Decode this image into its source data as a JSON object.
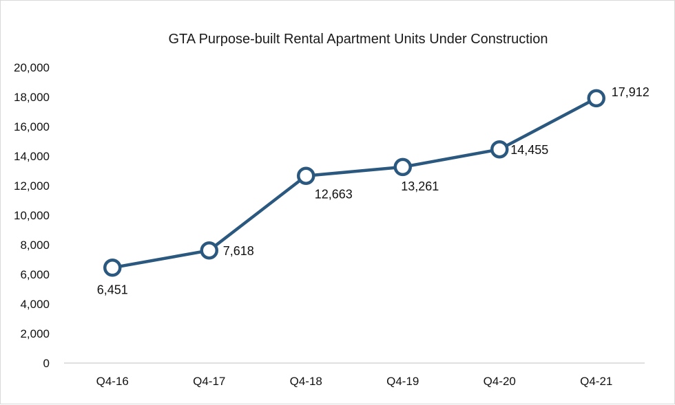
{
  "chart_data": {
    "type": "line",
    "title": "GTA Purpose-built Rental Apartment Units Under Construction",
    "xlabel": "",
    "ylabel": "",
    "categories": [
      "Q4-16",
      "Q4-17",
      "Q4-18",
      "Q4-19",
      "Q4-20",
      "Q4-21"
    ],
    "series": [
      {
        "values": [
          6451,
          7618,
          12663,
          13261,
          14455,
          17912
        ],
        "data_labels": [
          "6,451",
          "7,618",
          "12,663",
          "13,261",
          "14,455",
          "17,912"
        ],
        "color": "#2b587e",
        "marker": "open-circle"
      }
    ],
    "ylim": [
      0,
      20000
    ],
    "yticks": [
      0,
      2000,
      4000,
      6000,
      8000,
      10000,
      12000,
      14000,
      16000,
      18000,
      20000
    ],
    "ytick_labels": [
      "0",
      "2,000",
      "4,000",
      "6,000",
      "8,000",
      "10,000",
      "12,000",
      "14,000",
      "16,000",
      "18,000",
      "20,000"
    ],
    "grid": false,
    "legend": "none"
  }
}
